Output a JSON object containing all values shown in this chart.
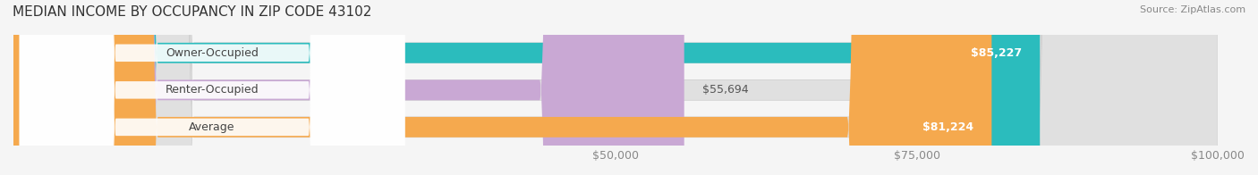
{
  "title": "MEDIAN INCOME BY OCCUPANCY IN ZIP CODE 43102",
  "source": "Source: ZipAtlas.com",
  "categories": [
    "Owner-Occupied",
    "Renter-Occupied",
    "Average"
  ],
  "values": [
    85227,
    55694,
    81224
  ],
  "bar_colors": [
    "#2bbcbd",
    "#c9a8d4",
    "#f5a94e"
  ],
  "label_colors": [
    "#2bbcbd",
    "#c9a8d4",
    "#f5a94e"
  ],
  "bar_height": 0.55,
  "xlim": [
    0,
    100000
  ],
  "xticks": [
    50000,
    75000,
    100000
  ],
  "value_label_inside": [
    true,
    false,
    true
  ],
  "background_color": "#f5f5f5",
  "bar_bg_color": "#e8e8e8",
  "title_fontsize": 11,
  "source_fontsize": 8,
  "tick_fontsize": 9,
  "bar_label_fontsize": 9,
  "category_fontsize": 9
}
